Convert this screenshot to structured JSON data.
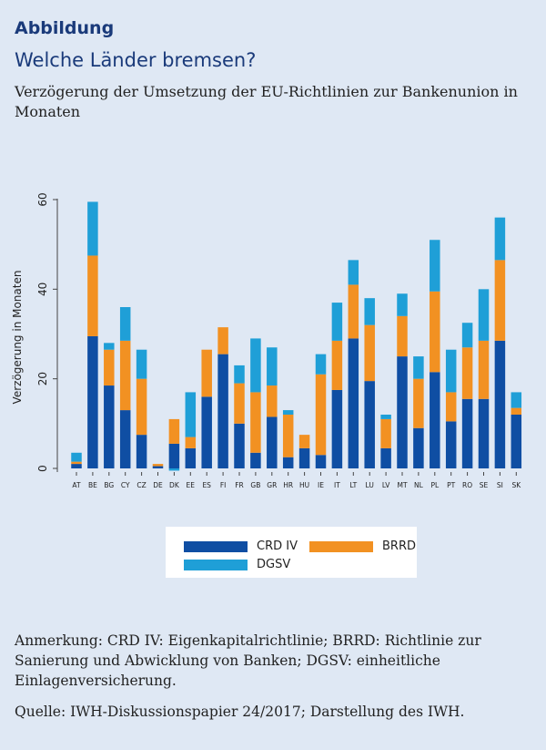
{
  "header": {
    "kicker": "Abbildung",
    "headline": "Welche Länder bremsen?",
    "subtitle": "Verzögerung der Umsetzung der EU-Richtlinien zur Bankenunion in Monaten"
  },
  "chart_data": {
    "type": "bar",
    "stacked": true,
    "ylabel": "Verzögerung in Monaten",
    "xlabel": "",
    "ylim": [
      0,
      60
    ],
    "yticks": [
      0,
      20,
      40,
      60
    ],
    "categories": [
      "AT",
      "BE",
      "BG",
      "CY",
      "CZ",
      "DE",
      "DK",
      "EE",
      "ES",
      "FI",
      "FR",
      "GB",
      "GR",
      "HR",
      "HU",
      "IE",
      "IT",
      "LT",
      "LU",
      "LV",
      "MT",
      "NL",
      "PL",
      "PT",
      "RO",
      "SE",
      "SI",
      "SK"
    ],
    "series": [
      {
        "name": "CRD IV",
        "color": "#0f4ea3",
        "values": [
          1,
          29.5,
          18.5,
          13,
          7.5,
          0.5,
          5.5,
          4.5,
          16,
          25.5,
          10,
          3.5,
          11.5,
          2.5,
          4.5,
          3,
          17.5,
          29,
          19.5,
          4.5,
          25,
          9,
          21.5,
          10.5,
          15.5,
          15.5,
          28.5,
          12
        ]
      },
      {
        "name": "BRRD",
        "color": "#f29122",
        "values": [
          0.5,
          18,
          8,
          15.5,
          12.5,
          0.5,
          5.5,
          2.5,
          10.5,
          6,
          9,
          13.5,
          7,
          9.5,
          3,
          18,
          11,
          12,
          12.5,
          6.5,
          9,
          11,
          18,
          6.5,
          11.5,
          13,
          18,
          1.5
        ]
      },
      {
        "name": "DGSV",
        "color": "#1f9fd7",
        "values": [
          2,
          12,
          1.5,
          7.5,
          6.5,
          0,
          -0.5,
          10,
          0,
          0,
          4,
          12,
          8.5,
          1,
          0,
          4.5,
          8.5,
          5.5,
          6,
          1,
          5,
          5,
          11.5,
          9.5,
          5.5,
          11.5,
          9.5,
          3.5
        ]
      }
    ],
    "legend_position": "bottom",
    "grid": false
  },
  "legend": {
    "items": [
      {
        "label": "CRD IV",
        "color": "#0f4ea3"
      },
      {
        "label": "BRRD",
        "color": "#f29122"
      },
      {
        "label": "DGSV",
        "color": "#1f9fd7"
      }
    ]
  },
  "footer": {
    "note": "Anmerkung: CRD IV: Eigenkapitalrichtlinie; BRRD: Richtlinie zur Sanierung und Abwicklung von Banken; DGSV: einheitliche Einlagenversicherung.",
    "source": "Quelle: IWH-Diskussionspapier 24/2017; Darstellung des IWH."
  }
}
